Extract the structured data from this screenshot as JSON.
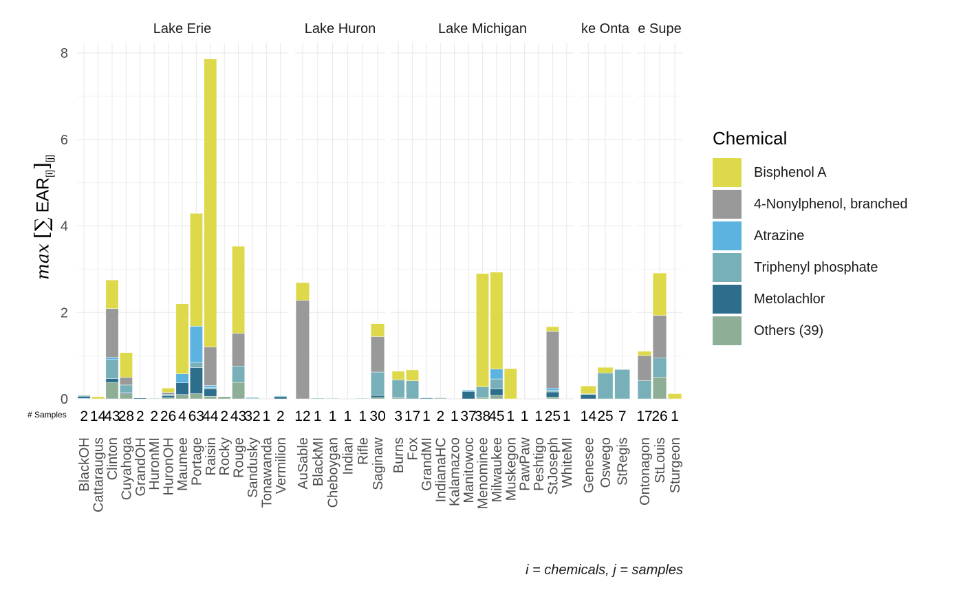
{
  "chart_data": {
    "type": "bar",
    "stacked": true,
    "ylim": [
      0,
      8.2
    ],
    "y_ticks": [
      "0",
      "2",
      "4",
      "6",
      "8"
    ],
    "y_tick_values": [
      0,
      2,
      4,
      6,
      8
    ],
    "grid": true,
    "legend_placement": "right",
    "legend_title": "Chemical",
    "samples_label": "# Samples",
    "caption": "i = chemicals, j = samples",
    "ylabel": {
      "prefix": "max",
      "open": "[",
      "sigma": "∑",
      "ear": " EAR",
      "sub_i": "[i]",
      "close": "]",
      "sub_j": "[j]"
    },
    "series": [
      {
        "name": "Bisphenol A",
        "color": "#DED94A"
      },
      {
        "name": "4-Nonylphenol, branched",
        "color": "#999999"
      },
      {
        "name": "Atrazine",
        "color": "#5DB3E0"
      },
      {
        "name": "Triphenyl phosphate",
        "color": "#77B0B8"
      },
      {
        "name": "Metolachlor",
        "color": "#2C6E8C"
      },
      {
        "name": "Others (39)",
        "color": "#8EAE96"
      }
    ],
    "stack_order_bottom_to_top": [
      "Others (39)",
      "Metolachlor",
      "Triphenyl phosphate",
      "Atrazine",
      "4-Nonylphenol, branched",
      "Bisphenol A"
    ],
    "facets": [
      {
        "label": "Lake Erie",
        "sites": [
          {
            "site": "BlackOH",
            "samples": "2",
            "values": {
              "Others (39)": 0.01,
              "Metolachlor": 0.05,
              "Triphenyl phosphate": 0.02
            }
          },
          {
            "site": "Cattaraugus",
            "samples": "14",
            "values": {
              "Bisphenol A": 0.05
            }
          },
          {
            "site": "Clinton",
            "samples": "43",
            "values": {
              "Others (39)": 0.38,
              "Metolachlor": 0.09,
              "Triphenyl phosphate": 0.44,
              "Atrazine": 0.05,
              "4-Nonylphenol, branched": 1.13,
              "Bisphenol A": 0.66
            }
          },
          {
            "site": "Cuyahoga",
            "samples": "28",
            "values": {
              "Others (39)": 0.12,
              "Metolachlor": 0.03,
              "Triphenyl phosphate": 0.17,
              "4-Nonylphenol, branched": 0.18,
              "Bisphenol A": 0.57
            }
          },
          {
            "site": "GrandOH",
            "samples": "2",
            "values": {
              "Metolachlor": 0.02
            }
          },
          {
            "site": "HuronMI",
            "samples": "2",
            "values": {
              "Others (39)": 0.01
            }
          },
          {
            "site": "HuronOH",
            "samples": "26",
            "values": {
              "Others (39)": 0.03,
              "Metolachlor": 0.04,
              "Triphenyl phosphate": 0.03,
              "4-Nonylphenol, branched": 0.05,
              "Bisphenol A": 0.1
            }
          },
          {
            "site": "Maumee",
            "samples": "4",
            "values": {
              "Others (39)": 0.1,
              "Metolachlor": 0.27,
              "Triphenyl phosphate": 0.0,
              "Atrazine": 0.21,
              "Bisphenol A": 1.62
            }
          },
          {
            "site": "Portage",
            "samples": "63",
            "values": {
              "Others (39)": 0.12,
              "Metolachlor": 0.6,
              "Triphenyl phosphate": 0.12,
              "Atrazine": 0.84,
              "Bisphenol A": 2.61
            }
          },
          {
            "site": "Raisin",
            "samples": "44",
            "values": {
              "Others (39)": 0.06,
              "Metolachlor": 0.17,
              "Triphenyl phosphate": 0.03,
              "Atrazine": 0.05,
              "4-Nonylphenol, branched": 0.89,
              "Bisphenol A": 6.66
            }
          },
          {
            "site": "Rocky",
            "samples": "2",
            "values": {
              "Others (39)": 0.05
            }
          },
          {
            "site": "Rouge",
            "samples": "43",
            "values": {
              "Others (39)": 0.38,
              "Triphenyl phosphate": 0.38,
              "4-Nonylphenol, branched": 0.76,
              "Bisphenol A": 2.01
            }
          },
          {
            "site": "Sandusky",
            "samples": "32",
            "values": {
              "Metolachlor": 0.01,
              "Triphenyl phosphate": 0.01,
              "Atrazine": 0.02
            }
          },
          {
            "site": "Tonawanda",
            "samples": "1",
            "values": {}
          },
          {
            "site": "Vermilion",
            "samples": "2",
            "values": {
              "Metolachlor": 0.05,
              "Triphenyl phosphate": 0.02
            }
          }
        ]
      },
      {
        "label": "Lake Huron",
        "sites": [
          {
            "site": "AuSable",
            "samples": "12",
            "values": {
              "4-Nonylphenol, branched": 2.28,
              "Bisphenol A": 0.41
            }
          },
          {
            "site": "BlackMI",
            "samples": "1",
            "values": {
              "Metolachlor": 0.01,
              "Triphenyl phosphate": 0.01
            }
          },
          {
            "site": "Cheboygan",
            "samples": "1",
            "values": {
              "Triphenyl phosphate": 0.01
            }
          },
          {
            "site": "Indian",
            "samples": "1",
            "values": {}
          },
          {
            "site": "Rifle",
            "samples": "1",
            "values": {
              "Triphenyl phosphate": 0.01
            }
          },
          {
            "site": "Saginaw",
            "samples": "30",
            "values": {
              "Others (39)": 0.03,
              "Metolachlor": 0.05,
              "Triphenyl phosphate": 0.54,
              "Atrazine": 0.0,
              "4-Nonylphenol, branched": 0.82,
              "Bisphenol A": 0.3
            }
          }
        ]
      },
      {
        "label": "Lake Michigan",
        "sites": [
          {
            "site": "Burns",
            "samples": "3",
            "values": {
              "Others (39)": 0.02,
              "Metolachlor": 0.02,
              "Triphenyl phosphate": 0.4,
              "Bisphenol A": 0.2
            }
          },
          {
            "site": "Fox",
            "samples": "17",
            "values": {
              "Triphenyl phosphate": 0.42,
              "Bisphenol A": 0.25
            }
          },
          {
            "site": "GrandMI",
            "samples": "1",
            "values": {
              "Metolachlor": 0.02,
              "Triphenyl phosphate": 0.01
            }
          },
          {
            "site": "IndianaHC",
            "samples": "2",
            "values": {
              "Others (39)": 0.02,
              "Triphenyl phosphate": 0.01
            }
          },
          {
            "site": "Kalamazoo",
            "samples": "1",
            "values": {}
          },
          {
            "site": "Manitowoc",
            "samples": "37",
            "values": {
              "Metolachlor": 0.17,
              "Atrazine": 0.03
            }
          },
          {
            "site": "Menominee",
            "samples": "38",
            "values": {
              "Others (39)": 0.03,
              "Triphenyl phosphate": 0.25,
              "Bisphenol A": 2.62
            }
          },
          {
            "site": "Milwaukee",
            "samples": "45",
            "values": {
              "Others (39)": 0.08,
              "Metolachlor": 0.15,
              "Triphenyl phosphate": 0.23,
              "Atrazine": 0.23,
              "4-Nonylphenol, branched": 0.0,
              "Bisphenol A": 2.24
            }
          },
          {
            "site": "Muskegon",
            "samples": "1",
            "values": {
              "Bisphenol A": 0.7
            }
          },
          {
            "site": "PawPaw",
            "samples": "1",
            "values": {}
          },
          {
            "site": "Peshtigo",
            "samples": "1",
            "values": {}
          },
          {
            "site": "StJoseph",
            "samples": "25",
            "values": {
              "Others (39)": 0.04,
              "Metolachlor": 0.12,
              "Triphenyl phosphate": 0.04,
              "Atrazine": 0.05,
              "4-Nonylphenol, branched": 1.31,
              "Bisphenol A": 0.11
            }
          },
          {
            "site": "WhiteMI",
            "samples": "1",
            "values": {}
          }
        ]
      },
      {
        "label": "ke Onta",
        "sites": [
          {
            "site": "Genesee",
            "samples": "14",
            "values": {
              "Metolachlor": 0.1,
              "Triphenyl phosphate": 0.02,
              "Bisphenol A": 0.18
            }
          },
          {
            "site": "Oswego",
            "samples": "25",
            "values": {
              "Triphenyl phosphate": 0.6,
              "Bisphenol A": 0.13
            }
          },
          {
            "site": "StRegis",
            "samples": "7",
            "values": {
              "Triphenyl phosphate": 0.68
            }
          }
        ]
      },
      {
        "label": "e Supe",
        "sites": [
          {
            "site": "Ontonagon",
            "samples": "17",
            "values": {
              "Triphenyl phosphate": 0.42,
              "4-Nonylphenol, branched": 0.58,
              "Bisphenol A": 0.1
            }
          },
          {
            "site": "StLouis",
            "samples": "26",
            "values": {
              "Others (39)": 0.5,
              "Triphenyl phosphate": 0.45,
              "4-Nonylphenol, branched": 0.98,
              "Bisphenol A": 0.98
            }
          },
          {
            "site": "Sturgeon",
            "samples": "1",
            "values": {
              "Bisphenol A": 0.12
            }
          }
        ]
      }
    ]
  }
}
